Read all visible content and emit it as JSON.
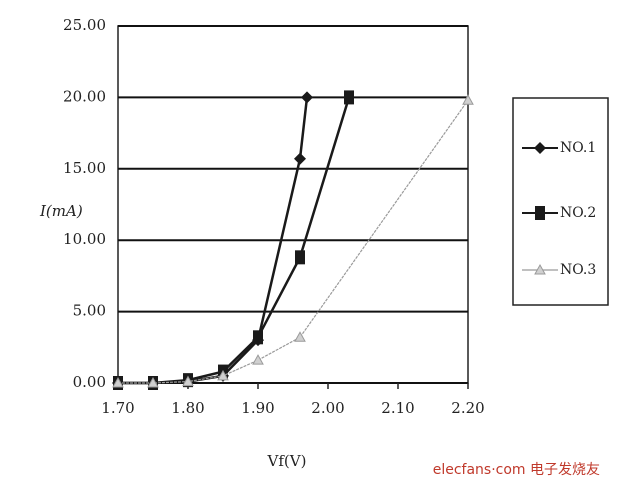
{
  "chart_data": {
    "type": "line",
    "x_label": "Vf(V)",
    "y_label": "I(mA)",
    "xlim": [
      1.7,
      2.2
    ],
    "xticks": [
      {
        "value": 1.7,
        "label": "1.70"
      },
      {
        "value": 1.8,
        "label": "1.80"
      },
      {
        "value": 1.9,
        "label": "1.90"
      },
      {
        "value": 2.0,
        "label": "2.00"
      },
      {
        "value": 2.1,
        "label": "2.10"
      },
      {
        "value": 2.2,
        "label": "2.20"
      }
    ],
    "ylim": [
      0,
      25
    ],
    "yticks": [
      {
        "value": 0,
        "label": "0.00"
      },
      {
        "value": 5,
        "label": "5.00"
      },
      {
        "value": 10,
        "label": "10.00"
      },
      {
        "value": 15,
        "label": "15.00"
      },
      {
        "value": 20,
        "label": "20.00"
      },
      {
        "value": 25,
        "label": "25.00"
      }
    ],
    "grid": true,
    "legend": "right",
    "series": [
      {
        "name": "NO.1",
        "color": "#1a1a1a",
        "marker": "diamond",
        "x": [
          1.7,
          1.75,
          1.8,
          1.85,
          1.9,
          1.96,
          1.97
        ],
        "values": [
          0,
          0,
          0.1,
          0.5,
          3.0,
          15.7,
          20
        ]
      },
      {
        "name": "NO.2",
        "color": "#1a1a1a",
        "marker": "square",
        "x": [
          1.7,
          1.75,
          1.8,
          1.85,
          1.9,
          1.96,
          2.03
        ],
        "values": [
          0,
          0,
          0.2,
          0.8,
          3.2,
          8.8,
          20
        ]
      },
      {
        "name": "NO.3",
        "color": "#9a9a9a",
        "marker": "triangle",
        "x": [
          1.7,
          1.75,
          1.8,
          1.85,
          1.9,
          1.96,
          2.2
        ],
        "values": [
          0,
          0,
          0.1,
          0.5,
          1.6,
          3.2,
          19.8
        ]
      }
    ],
    "watermark": "elecfans·com 电子发烧友"
  }
}
